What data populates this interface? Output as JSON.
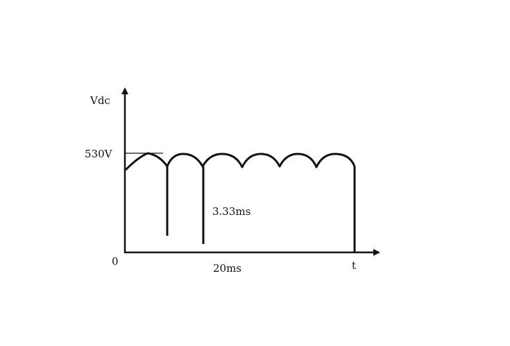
{
  "diagram": {
    "y_axis_label": "Vdc",
    "x_axis_label": "t",
    "origin_label": "0",
    "peak_label": "530V",
    "dip_interval_label": "3.33ms",
    "period_label": "20ms",
    "line_color": "#111111"
  }
}
